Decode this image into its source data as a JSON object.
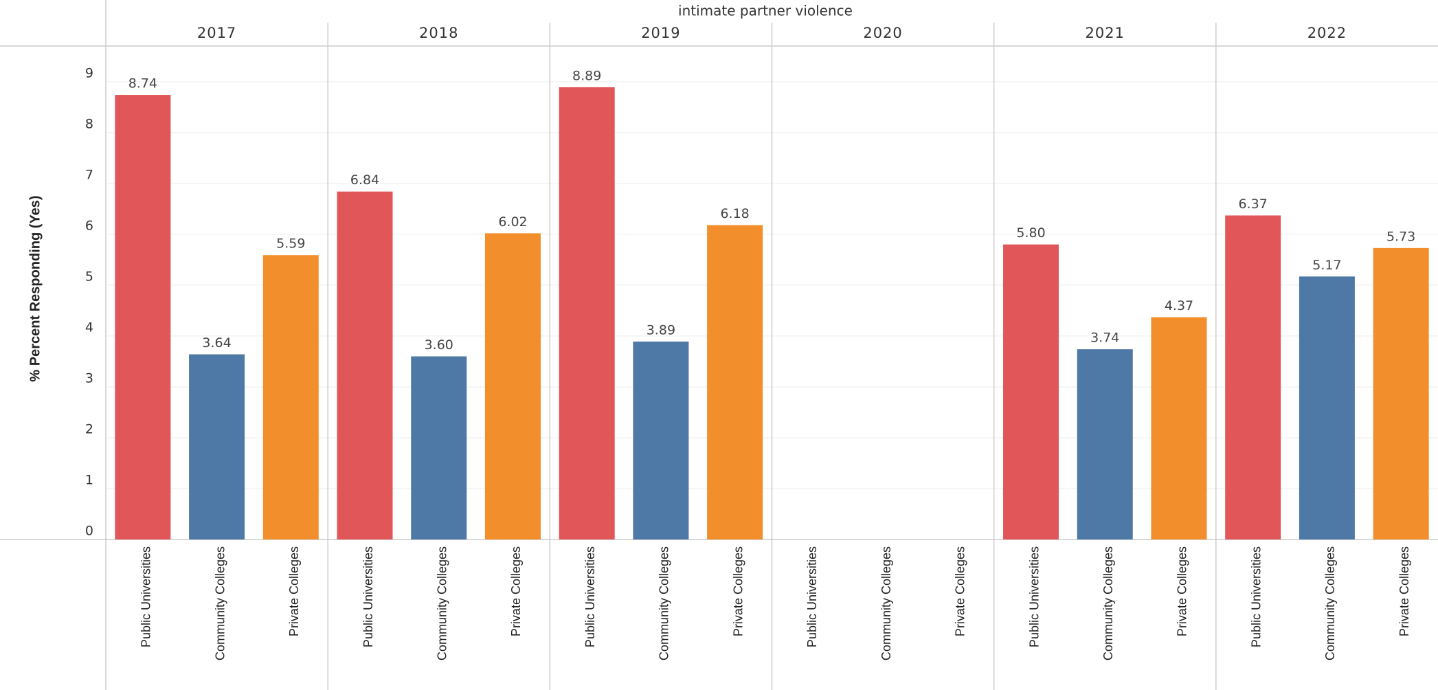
{
  "chart_data": {
    "type": "bar",
    "title": "intimate partner violence",
    "y_label": "% Percent Responding (Yes)",
    "groups": [
      "2017",
      "2018",
      "2019",
      "2020",
      "2021",
      "2022"
    ],
    "series": [
      {
        "name": "Public Universities",
        "color": "#e15759",
        "values": [
          8.74,
          6.84,
          8.89,
          null,
          5.8,
          6.37
        ],
        "value_labels": [
          "8.74",
          "6.84",
          "8.89",
          null,
          "5.80",
          "6.37"
        ]
      },
      {
        "name": "Community Colleges",
        "color": "#4e79a7",
        "values": [
          3.64,
          3.6,
          3.89,
          null,
          3.74,
          5.17
        ],
        "value_labels": [
          "3.64",
          "3.60",
          "3.89",
          null,
          "3.74",
          "5.17"
        ]
      },
      {
        "name": "Private Colleges",
        "color": "#f28e2b",
        "values": [
          5.59,
          6.02,
          6.18,
          null,
          4.37,
          5.73
        ],
        "value_labels": [
          "5.59",
          "6.02",
          "6.18",
          null,
          "4.37",
          "5.73"
        ]
      }
    ],
    "ylim": [
      0,
      9.7
    ],
    "yticks": [
      0,
      1,
      2,
      3,
      4,
      5,
      6,
      7,
      8,
      9
    ],
    "grid": true
  }
}
